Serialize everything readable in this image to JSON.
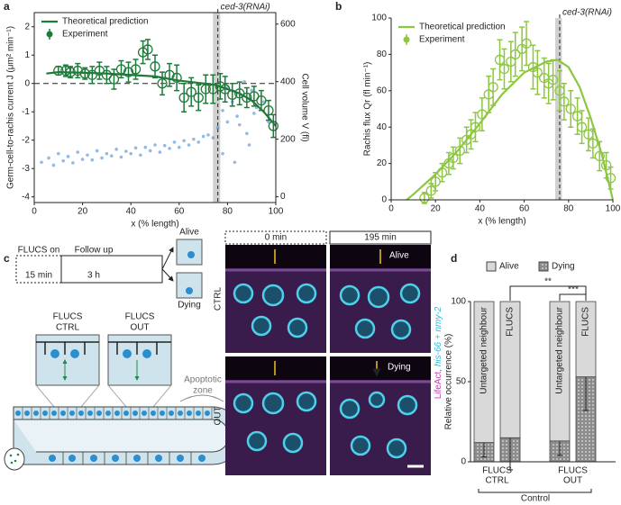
{
  "panel_labels": [
    "a",
    "b",
    "c",
    "d"
  ],
  "chart_data": [
    {
      "type": "line",
      "annotation": "ced-3(RNAi)",
      "xlabel": "x (% length)",
      "ylabel": "Germ-cell-to-rachis current J (μm² min⁻¹)",
      "y2label": "Cell volume V (fl)",
      "frame": true,
      "xlim": [
        0,
        100
      ],
      "xticks": [
        0,
        20,
        40,
        60,
        80,
        100
      ],
      "ylim": [
        -4.2,
        2.5
      ],
      "yticks": [
        -4,
        -3,
        -2,
        -1,
        0,
        1,
        2
      ],
      "y2lim": [
        -20,
        640
      ],
      "y2ticks": [
        0,
        200,
        400,
        600
      ],
      "hline": 0,
      "vline": 76,
      "band": [
        74,
        77
      ],
      "legend": "upper left",
      "series": [
        {
          "name": "Theoretical prediction",
          "type": "line",
          "color": "#1f7a3a",
          "x": [
            5,
            10,
            20,
            30,
            40,
            50,
            60,
            70,
            75,
            80,
            85,
            90,
            95,
            100
          ],
          "values": [
            0.35,
            0.4,
            0.38,
            0.35,
            0.3,
            0.25,
            0.1,
            0,
            -0.05,
            -0.2,
            -0.35,
            -0.6,
            -1.0,
            -1.5
          ]
        },
        {
          "name": "Experiment",
          "type": "errorbar",
          "color": "#1f7a3a",
          "x": [
            10,
            13,
            15,
            18,
            21,
            24,
            27,
            30,
            33,
            36,
            39,
            42,
            45,
            47,
            50,
            53,
            56,
            59,
            62,
            65,
            68,
            71,
            74,
            77,
            79,
            82,
            85,
            88,
            91,
            94,
            97,
            99
          ],
          "values": [
            0.45,
            0.45,
            0.4,
            0.45,
            0.35,
            0.3,
            0.45,
            0.3,
            0.15,
            0.5,
            0.4,
            0.5,
            1.1,
            1.2,
            0.6,
            0,
            0.3,
            0.2,
            -0.5,
            -0.3,
            -0.5,
            -0.2,
            -0.2,
            -0.1,
            -0.2,
            -0.4,
            -0.35,
            -0.5,
            -0.45,
            -0.6,
            -0.95,
            -1.5
          ],
          "errors": [
            0.15,
            0.2,
            0.2,
            0.25,
            0.2,
            0.3,
            0.3,
            0.3,
            0.35,
            0.3,
            0.35,
            0.35,
            0.4,
            0.35,
            0.4,
            0.4,
            0.4,
            0.45,
            0.5,
            0.5,
            0.45,
            0.5,
            0.5,
            0.45,
            0.45,
            0.4,
            0.4,
            0.35,
            0.35,
            0.35,
            0.35,
            0.4
          ]
        },
        {
          "type": "scatter",
          "axis": "y2",
          "color": "#3d7fc6",
          "x": [
            3,
            6,
            8,
            10,
            12,
            14,
            16,
            18,
            20,
            22,
            24,
            26,
            28,
            30,
            32,
            34,
            36,
            38,
            40,
            42,
            44,
            46,
            48,
            50,
            52,
            54,
            56,
            58,
            60,
            62,
            64,
            66,
            68,
            70,
            72,
            74,
            76,
            78,
            80,
            82,
            84,
            86,
            88,
            90,
            92,
            78,
            80,
            83,
            85,
            87,
            89,
            91,
            95,
            97
          ],
          "values": [
            120,
            135,
            110,
            150,
            125,
            140,
            118,
            155,
            130,
            145,
            128,
            160,
            135,
            150,
            142,
            165,
            138,
            158,
            150,
            170,
            145,
            172,
            160,
            180,
            155,
            178,
            168,
            190,
            172,
            195,
            180,
            200,
            190,
            210,
            215,
            205,
            240,
            300,
            260,
            330,
            280,
            350,
            220,
            370,
            310,
            150,
            380,
            120,
            250,
            400,
            180,
            290,
            330,
            260
          ]
        }
      ]
    },
    {
      "type": "line",
      "annotation": "ced-3(RNAi)",
      "xlabel": "x (% length)",
      "ylabel": "Rachis flux Qr (fl min⁻¹)",
      "xlim": [
        0,
        100
      ],
      "xticks": [
        0,
        20,
        40,
        60,
        80,
        100
      ],
      "ylim": [
        0,
        100
      ],
      "yticks": [
        0,
        20,
        40,
        60,
        80,
        100
      ],
      "vline": 76,
      "band": [
        74,
        77
      ],
      "legend": "upper left",
      "series": [
        {
          "name": "Theoretical prediction",
          "type": "line",
          "color": "#8dc641",
          "x": [
            7,
            10,
            20,
            30,
            40,
            50,
            60,
            70,
            75,
            80,
            85,
            90,
            95,
            100
          ],
          "values": [
            0,
            3,
            14,
            27,
            42,
            58,
            70,
            76,
            77,
            73,
            62,
            45,
            25,
            0
          ]
        },
        {
          "name": "Experiment",
          "type": "errorbar",
          "color": "#8dc641",
          "x": [
            15,
            18,
            20,
            23,
            26,
            28,
            31,
            34,
            36,
            38,
            41,
            44,
            46,
            49,
            51,
            54,
            56,
            59,
            61,
            64,
            66,
            69,
            71,
            73,
            76,
            78,
            81,
            84,
            86,
            89,
            91,
            94,
            97,
            99
          ],
          "values": [
            1,
            5,
            10,
            15,
            20,
            23,
            27,
            33,
            36,
            40,
            47,
            58,
            62,
            77,
            72,
            76,
            80,
            83,
            86,
            73,
            70,
            67,
            64,
            66,
            60,
            54,
            50,
            46,
            40,
            36,
            31,
            24,
            19,
            12
          ],
          "errors": [
            3,
            4,
            5,
            5,
            6,
            6,
            7,
            7,
            8,
            8,
            9,
            10,
            10,
            11,
            11,
            11,
            12,
            12,
            12,
            12,
            12,
            11,
            11,
            11,
            11,
            10,
            10,
            10,
            9,
            9,
            8,
            8,
            7,
            6
          ]
        }
      ]
    },
    {
      "type": "stacked_bar",
      "ylabel": "Relative occurrence (%)",
      "ylim": [
        0,
        100
      ],
      "yticks": [
        0,
        50,
        100
      ],
      "categories": [
        "Untargeted neighbour",
        "FLUCS",
        "Untargeted neighbour",
        "FLUCS"
      ],
      "series": [
        {
          "name": "Alive",
          "color": "#d9d9d9",
          "values": [
            88,
            85,
            87,
            47
          ]
        },
        {
          "name": "Dying",
          "color": "#8c8c8c",
          "hatch": "dots",
          "values": [
            12,
            15,
            13,
            53
          ],
          "errors": [
            9,
            20,
            9,
            21
          ]
        }
      ],
      "groups": [
        [
          "FLUCS",
          "CTRL"
        ],
        [
          "FLUCS",
          "OUT"
        ]
      ],
      "group_caption": "Control",
      "significance": [
        "**",
        "***"
      ]
    }
  ],
  "panel_c": {
    "timeline": [
      "FLUCS on",
      "15 min",
      "Follow up",
      "3 h"
    ],
    "outcomes": [
      "Alive",
      "Dying"
    ],
    "conditions": [
      [
        "FLUCS",
        "CTRL"
      ],
      [
        "FLUCS",
        "OUT"
      ]
    ],
    "zone": [
      "Apoptotic",
      "zone"
    ],
    "times": [
      "0 min",
      "195 min"
    ],
    "rows": [
      "CTRL",
      "OUT"
    ],
    "image_labels": [
      "Alive",
      "Dying"
    ],
    "stain": [
      "LifeAct, ",
      "his-66 + nmy-2"
    ]
  }
}
